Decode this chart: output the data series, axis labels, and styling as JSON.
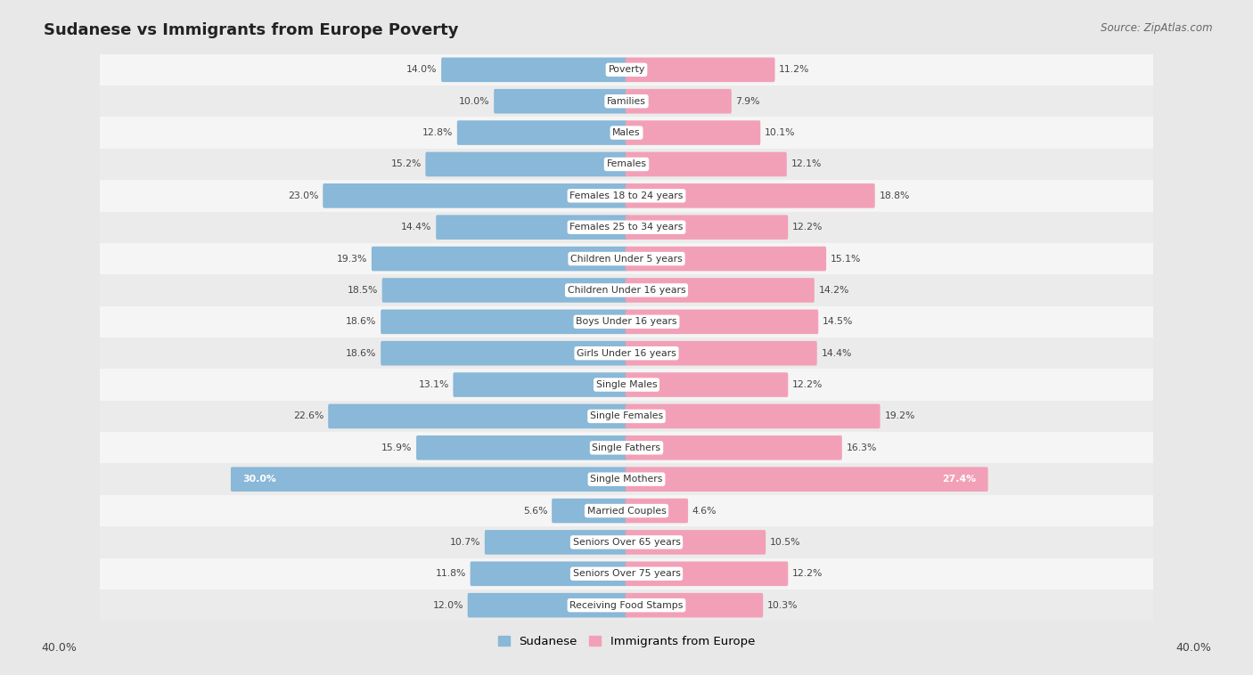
{
  "title": "Sudanese vs Immigrants from Europe Poverty",
  "source": "Source: ZipAtlas.com",
  "categories": [
    "Poverty",
    "Families",
    "Males",
    "Females",
    "Females 18 to 24 years",
    "Females 25 to 34 years",
    "Children Under 5 years",
    "Children Under 16 years",
    "Boys Under 16 years",
    "Girls Under 16 years",
    "Single Males",
    "Single Females",
    "Single Fathers",
    "Single Mothers",
    "Married Couples",
    "Seniors Over 65 years",
    "Seniors Over 75 years",
    "Receiving Food Stamps"
  ],
  "sudanese": [
    14.0,
    10.0,
    12.8,
    15.2,
    23.0,
    14.4,
    19.3,
    18.5,
    18.6,
    18.6,
    13.1,
    22.6,
    15.9,
    30.0,
    5.6,
    10.7,
    11.8,
    12.0
  ],
  "europe": [
    11.2,
    7.9,
    10.1,
    12.1,
    18.8,
    12.2,
    15.1,
    14.2,
    14.5,
    14.4,
    12.2,
    19.2,
    16.3,
    27.4,
    4.6,
    10.5,
    12.2,
    10.3
  ],
  "blue_color": "#89b8d8",
  "pink_color": "#f2a0b8",
  "blue_label": "Sudanese",
  "pink_label": "Immigrants from Europe",
  "axis_max": 40.0,
  "bg_color": "#e8e8e8",
  "row_bg_light": "#f5f5f5",
  "row_bg_dark": "#ebebeb",
  "axis_label_left": "40.0%",
  "axis_label_right": "40.0%"
}
